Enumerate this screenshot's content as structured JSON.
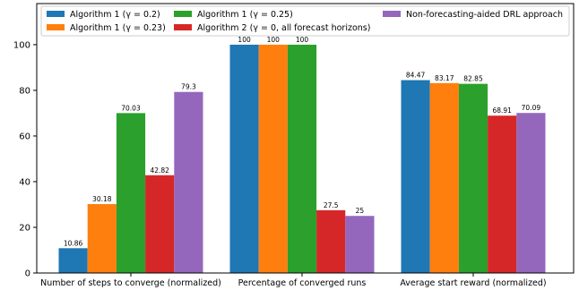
{
  "chart_data": {
    "type": "bar",
    "categories": [
      "Number of steps to converge (normalized)",
      "Percentage of converged runs",
      "Average start reward (normalized)"
    ],
    "series": [
      {
        "name": "Algorithm 1 (γ = 0.2)",
        "color": "#1f77b4",
        "values": [
          10.86,
          100,
          84.47
        ],
        "labels": [
          "10.86",
          "100",
          "84.47"
        ]
      },
      {
        "name": "Algorithm 1 (γ = 0.23)",
        "color": "#ff7f0e",
        "values": [
          30.18,
          100,
          83.17
        ],
        "labels": [
          "30.18",
          "100",
          "83.17"
        ]
      },
      {
        "name": "Algorithm 1 (γ = 0.25)",
        "color": "#2ca02c",
        "values": [
          70.03,
          100,
          82.85
        ],
        "labels": [
          "70.03",
          "100",
          "82.85"
        ]
      },
      {
        "name": "Algorithm 2 (γ = 0, all forecast horizons)",
        "color": "#d62728",
        "values": [
          42.82,
          27.5,
          68.91
        ],
        "labels": [
          "42.82",
          "27.5",
          "68.91"
        ]
      },
      {
        "name": "Non-forecasting-aided DRL approach",
        "color": "#9467bd",
        "values": [
          79.3,
          25,
          70.09
        ],
        "labels": [
          "79.3",
          "25",
          "70.09"
        ]
      }
    ],
    "yticks": [
      "0",
      "20",
      "40",
      "60",
      "80",
      "100"
    ],
    "ylim": [
      0,
      118
    ],
    "grid": false,
    "legend_position": "top"
  }
}
